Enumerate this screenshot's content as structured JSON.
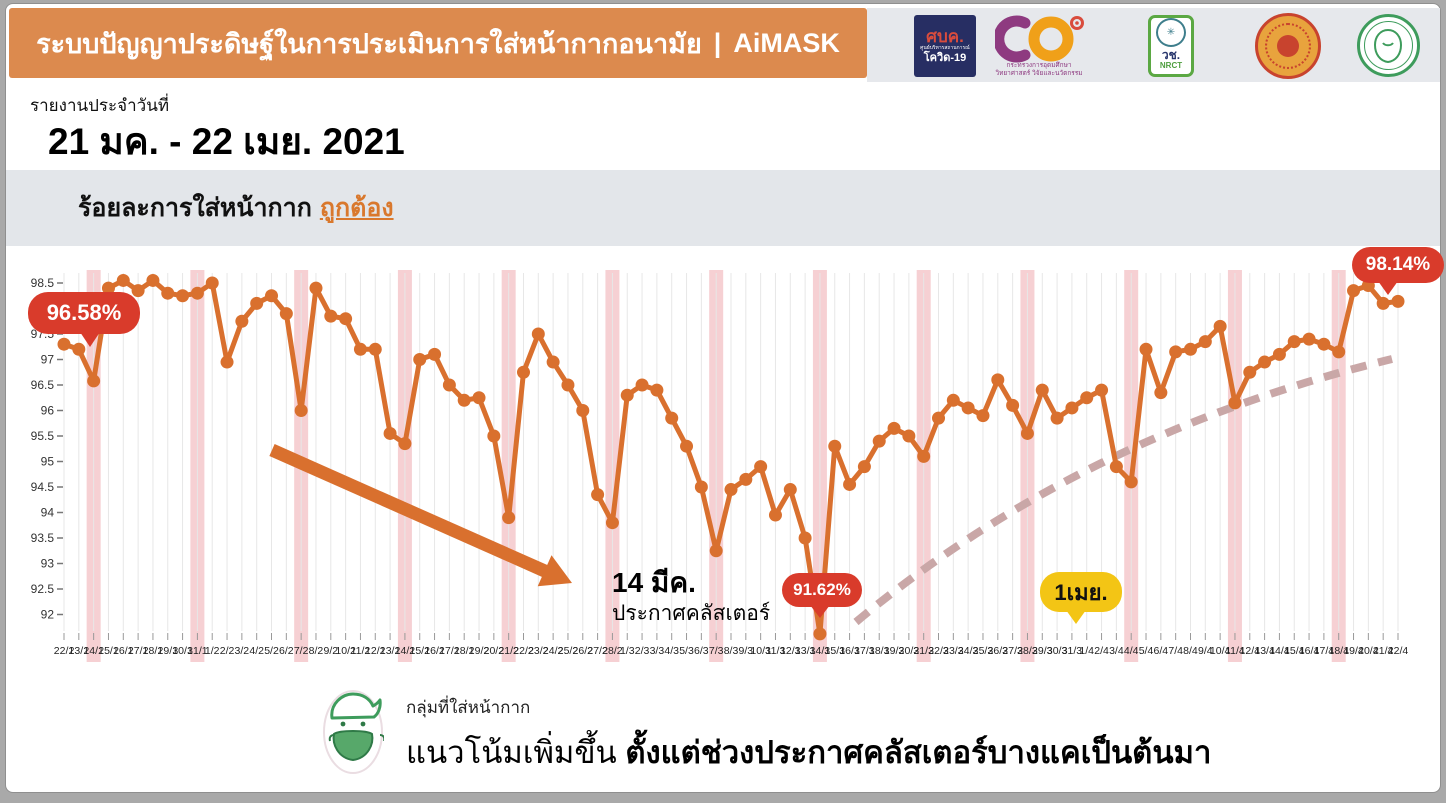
{
  "header": {
    "title_main": "ระบบปัญญาประดิษฐ์ในการประเมินการใส่หน้ากากอนามัย",
    "title_brand": "AiMASK",
    "bar_color": "#DC8A4E",
    "logos": [
      {
        "name": "ccsa-covid19",
        "line1": "ศบค.",
        "line2": "ศูนย์บริหารสถานการณ์",
        "line3": "โควิด-19"
      },
      {
        "name": "mhesi",
        "caption1": "กระทรวงการอุดมศึกษา",
        "caption2": "วิทยาศาสตร์ วิจัยและนวัตกรรม"
      },
      {
        "name": "nrct",
        "line1": "วช.",
        "line2": "NRCT"
      },
      {
        "name": "thammasat-university-seal"
      },
      {
        "name": "bangkok-metropolitan-seal"
      }
    ]
  },
  "report": {
    "label": "รายงานประจำวันที่",
    "date_range": "21 มค. - 22 เมย. 2021"
  },
  "subtitle": {
    "prefix": "ร้อยละการใส่หน้ากาก",
    "highlight": "ถูกต้อง"
  },
  "chart_data": {
    "type": "line",
    "series_name": "ร้อยละการใส่หน้ากากถูกต้อง",
    "ylim": [
      92,
      98.5
    ],
    "yticks": [
      98.5,
      98,
      97.5,
      97,
      96.5,
      96,
      95.5,
      95,
      94.5,
      94,
      93.5,
      93,
      92.5,
      92
    ],
    "grid": "vertical-daily",
    "line_color": "#D9702E",
    "band_color": "#EFA9AE",
    "trend_color": "#C9A7A7",
    "arrow_color": "#D9702E",
    "x": [
      "22/1",
      "23/1",
      "24/1",
      "25/1",
      "26/1",
      "27/1",
      "28/1",
      "29/1",
      "30/1",
      "31/1",
      "1/2",
      "2/2",
      "3/2",
      "4/2",
      "5/2",
      "6/2",
      "7/2",
      "8/2",
      "9/2",
      "10/2",
      "11/2",
      "12/2",
      "13/2",
      "14/2",
      "15/2",
      "16/2",
      "17/2",
      "18/2",
      "19/2",
      "20/2",
      "21/2",
      "22/2",
      "23/2",
      "24/2",
      "25/2",
      "26/2",
      "27/2",
      "28/2",
      "1/3",
      "2/3",
      "3/3",
      "4/3",
      "5/3",
      "6/3",
      "7/3",
      "8/3",
      "9/3",
      "10/3",
      "11/3",
      "12/3",
      "13/3",
      "14/3",
      "15/3",
      "16/3",
      "17/3",
      "18/3",
      "19/3",
      "20/3",
      "21/3",
      "22/3",
      "23/3",
      "24/3",
      "25/3",
      "26/3",
      "27/3",
      "28/3",
      "29/3",
      "30/3",
      "31/3",
      "1/4",
      "2/4",
      "3/4",
      "4/4",
      "5/4",
      "6/4",
      "7/4",
      "8/4",
      "9/4",
      "10/4",
      "11/4",
      "12/4",
      "13/4",
      "14/4",
      "15/4",
      "16/4",
      "17/4",
      "18/4",
      "19/4",
      "20/4",
      "21/4",
      "22/4"
    ],
    "values": [
      97.3,
      97.2,
      96.58,
      98.4,
      98.55,
      98.35,
      98.55,
      98.3,
      98.25,
      98.3,
      98.5,
      96.95,
      97.75,
      98.1,
      98.25,
      97.9,
      96.0,
      98.4,
      97.85,
      97.8,
      97.2,
      97.2,
      95.55,
      95.35,
      97.0,
      97.1,
      96.5,
      96.2,
      96.25,
      95.5,
      93.9,
      96.75,
      97.5,
      96.95,
      96.5,
      96.0,
      94.35,
      93.8,
      96.3,
      96.5,
      96.4,
      95.85,
      95.3,
      94.5,
      93.25,
      94.45,
      94.65,
      94.9,
      93.95,
      94.45,
      93.5,
      91.62,
      95.3,
      94.55,
      94.9,
      95.4,
      95.65,
      95.5,
      95.1,
      95.85,
      96.2,
      96.05,
      95.9,
      96.6,
      96.1,
      95.55,
      96.4,
      95.85,
      96.05,
      96.25,
      96.4,
      94.9,
      94.6,
      97.2,
      96.35,
      97.15,
      97.2,
      97.35,
      97.65,
      96.15,
      96.75,
      96.95,
      97.1,
      97.35,
      97.4,
      97.3,
      97.15,
      98.35,
      98.45,
      98.1,
      98.14
    ],
    "highlight_dates": [
      "24/1",
      "31/1",
      "7/2",
      "14/2",
      "21/2",
      "28/2",
      "7/3",
      "14/3",
      "21/3",
      "28/3",
      "4/4",
      "11/4",
      "18/4"
    ],
    "annotations": [
      {
        "kind": "balloon-red",
        "text": "96.58%",
        "date": "24/1"
      },
      {
        "kind": "balloon-red",
        "text": "98.14%",
        "date": "22/4"
      },
      {
        "kind": "pill-red",
        "text": "91.62%",
        "date": "14/3"
      },
      {
        "kind": "pill-yellow",
        "text": "1เมย.",
        "date": "1/4"
      },
      {
        "kind": "label",
        "text": "14 มีค.",
        "subtext": "ประกาศคลัสเตอร์",
        "date": "14/3"
      },
      {
        "kind": "arrow",
        "direction": "down-right"
      },
      {
        "kind": "dashed-trend",
        "direction": "up-right"
      }
    ]
  },
  "footer": {
    "small": "กลุ่มที่ใส่หน้ากาก",
    "normal": "แนวโน้มเพิ่มขึ้น",
    "bold": "ตั้งแต่ช่วงประกาศคลัสเตอร์บางแคเป็นต้นมา"
  }
}
